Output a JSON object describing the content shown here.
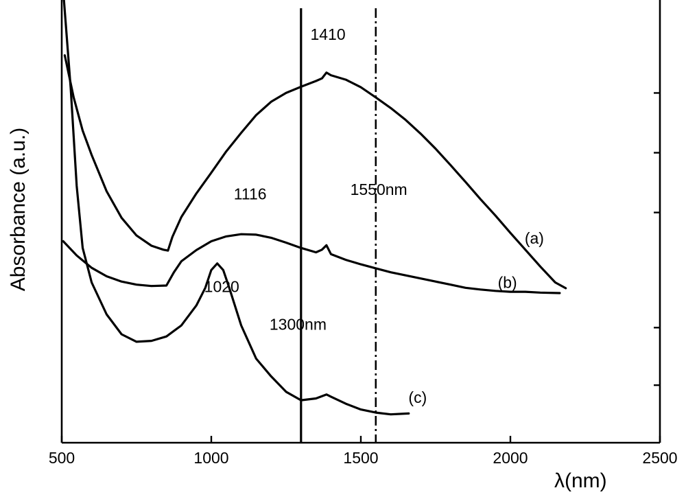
{
  "chart_data": {
    "type": "line",
    "title": "",
    "xlabel": "λ(nm)",
    "ylabel": "Absorbance (a.u.)",
    "xlim": [
      500,
      2500
    ],
    "ylim": [
      0,
      1
    ],
    "x_ticks": [
      "500",
      "1000",
      "1500",
      "2000",
      "2500"
    ],
    "y_tick_labels_shown": false,
    "grid": false,
    "legend": "none",
    "series": [
      {
        "name": "(a)",
        "x": [
          510,
          540,
          570,
          600,
          650,
          700,
          750,
          800,
          840,
          855,
          870,
          900,
          950,
          1000,
          1050,
          1100,
          1150,
          1200,
          1250,
          1300,
          1350,
          1370,
          1385,
          1400,
          1450,
          1500,
          1550,
          1600,
          1650,
          1700,
          1750,
          1800,
          1850,
          1900,
          1950,
          2000,
          2050,
          2100,
          2150,
          2185
        ],
        "y": [
          0.875,
          0.78,
          0.705,
          0.65,
          0.568,
          0.508,
          0.468,
          0.445,
          0.436,
          0.434,
          0.465,
          0.51,
          0.563,
          0.61,
          0.658,
          0.7,
          0.74,
          0.77,
          0.79,
          0.804,
          0.817,
          0.823,
          0.836,
          0.83,
          0.82,
          0.803,
          0.78,
          0.756,
          0.729,
          0.698,
          0.664,
          0.627,
          0.589,
          0.55,
          0.513,
          0.474,
          0.436,
          0.398,
          0.362,
          0.349
        ]
      },
      {
        "name": "(b)",
        "x": [
          505,
          550,
          600,
          650,
          700,
          750,
          800,
          850,
          875,
          900,
          950,
          1000,
          1050,
          1100,
          1150,
          1200,
          1250,
          1300,
          1350,
          1370,
          1385,
          1400,
          1450,
          1500,
          1550,
          1600,
          1650,
          1700,
          1750,
          1800,
          1850,
          1900,
          1950,
          2000,
          2050,
          2100,
          2165
        ],
        "y": [
          0.455,
          0.423,
          0.395,
          0.376,
          0.364,
          0.357,
          0.354,
          0.355,
          0.385,
          0.41,
          0.435,
          0.455,
          0.466,
          0.471,
          0.47,
          0.463,
          0.452,
          0.44,
          0.43,
          0.436,
          0.446,
          0.426,
          0.413,
          0.403,
          0.394,
          0.385,
          0.378,
          0.371,
          0.364,
          0.357,
          0.35,
          0.346,
          0.343,
          0.341,
          0.341,
          0.339,
          0.338
        ]
      },
      {
        "name": "(c)",
        "x": [
          505,
          530,
          550,
          570,
          600,
          650,
          700,
          750,
          800,
          850,
          900,
          950,
          980,
          1000,
          1020,
          1040,
          1060,
          1100,
          1150,
          1200,
          1250,
          1300,
          1350,
          1385,
          1400,
          1450,
          1500,
          1550,
          1600,
          1660
        ],
        "y": [
          1.02,
          0.8,
          0.58,
          0.44,
          0.362,
          0.29,
          0.245,
          0.228,
          0.23,
          0.24,
          0.265,
          0.31,
          0.35,
          0.39,
          0.405,
          0.39,
          0.35,
          0.265,
          0.19,
          0.15,
          0.115,
          0.096,
          0.1,
          0.109,
          0.104,
          0.088,
          0.075,
          0.068,
          0.064,
          0.066
        ]
      }
    ],
    "reference_lines": [
      {
        "x": 1300,
        "style": "solid",
        "label": "1300nm"
      },
      {
        "x": 1550,
        "style": "dash-dot",
        "label": "1550nm"
      }
    ],
    "annotations": [
      {
        "text": "1410",
        "x": 1390,
        "y": 0.91
      },
      {
        "text": "1116",
        "x": 1130,
        "y": 0.55
      },
      {
        "text": "1020",
        "x": 1035,
        "y": 0.34
      },
      {
        "text": "1550nm",
        "x": 1560,
        "y": 0.56
      },
      {
        "text": "1300nm",
        "x": 1290,
        "y": 0.255
      },
      {
        "text": "(a)",
        "x": 2080,
        "y": 0.45
      },
      {
        "text": "(b)",
        "x": 1990,
        "y": 0.35
      },
      {
        "text": "(c)",
        "x": 1690,
        "y": 0.09
      }
    ]
  }
}
